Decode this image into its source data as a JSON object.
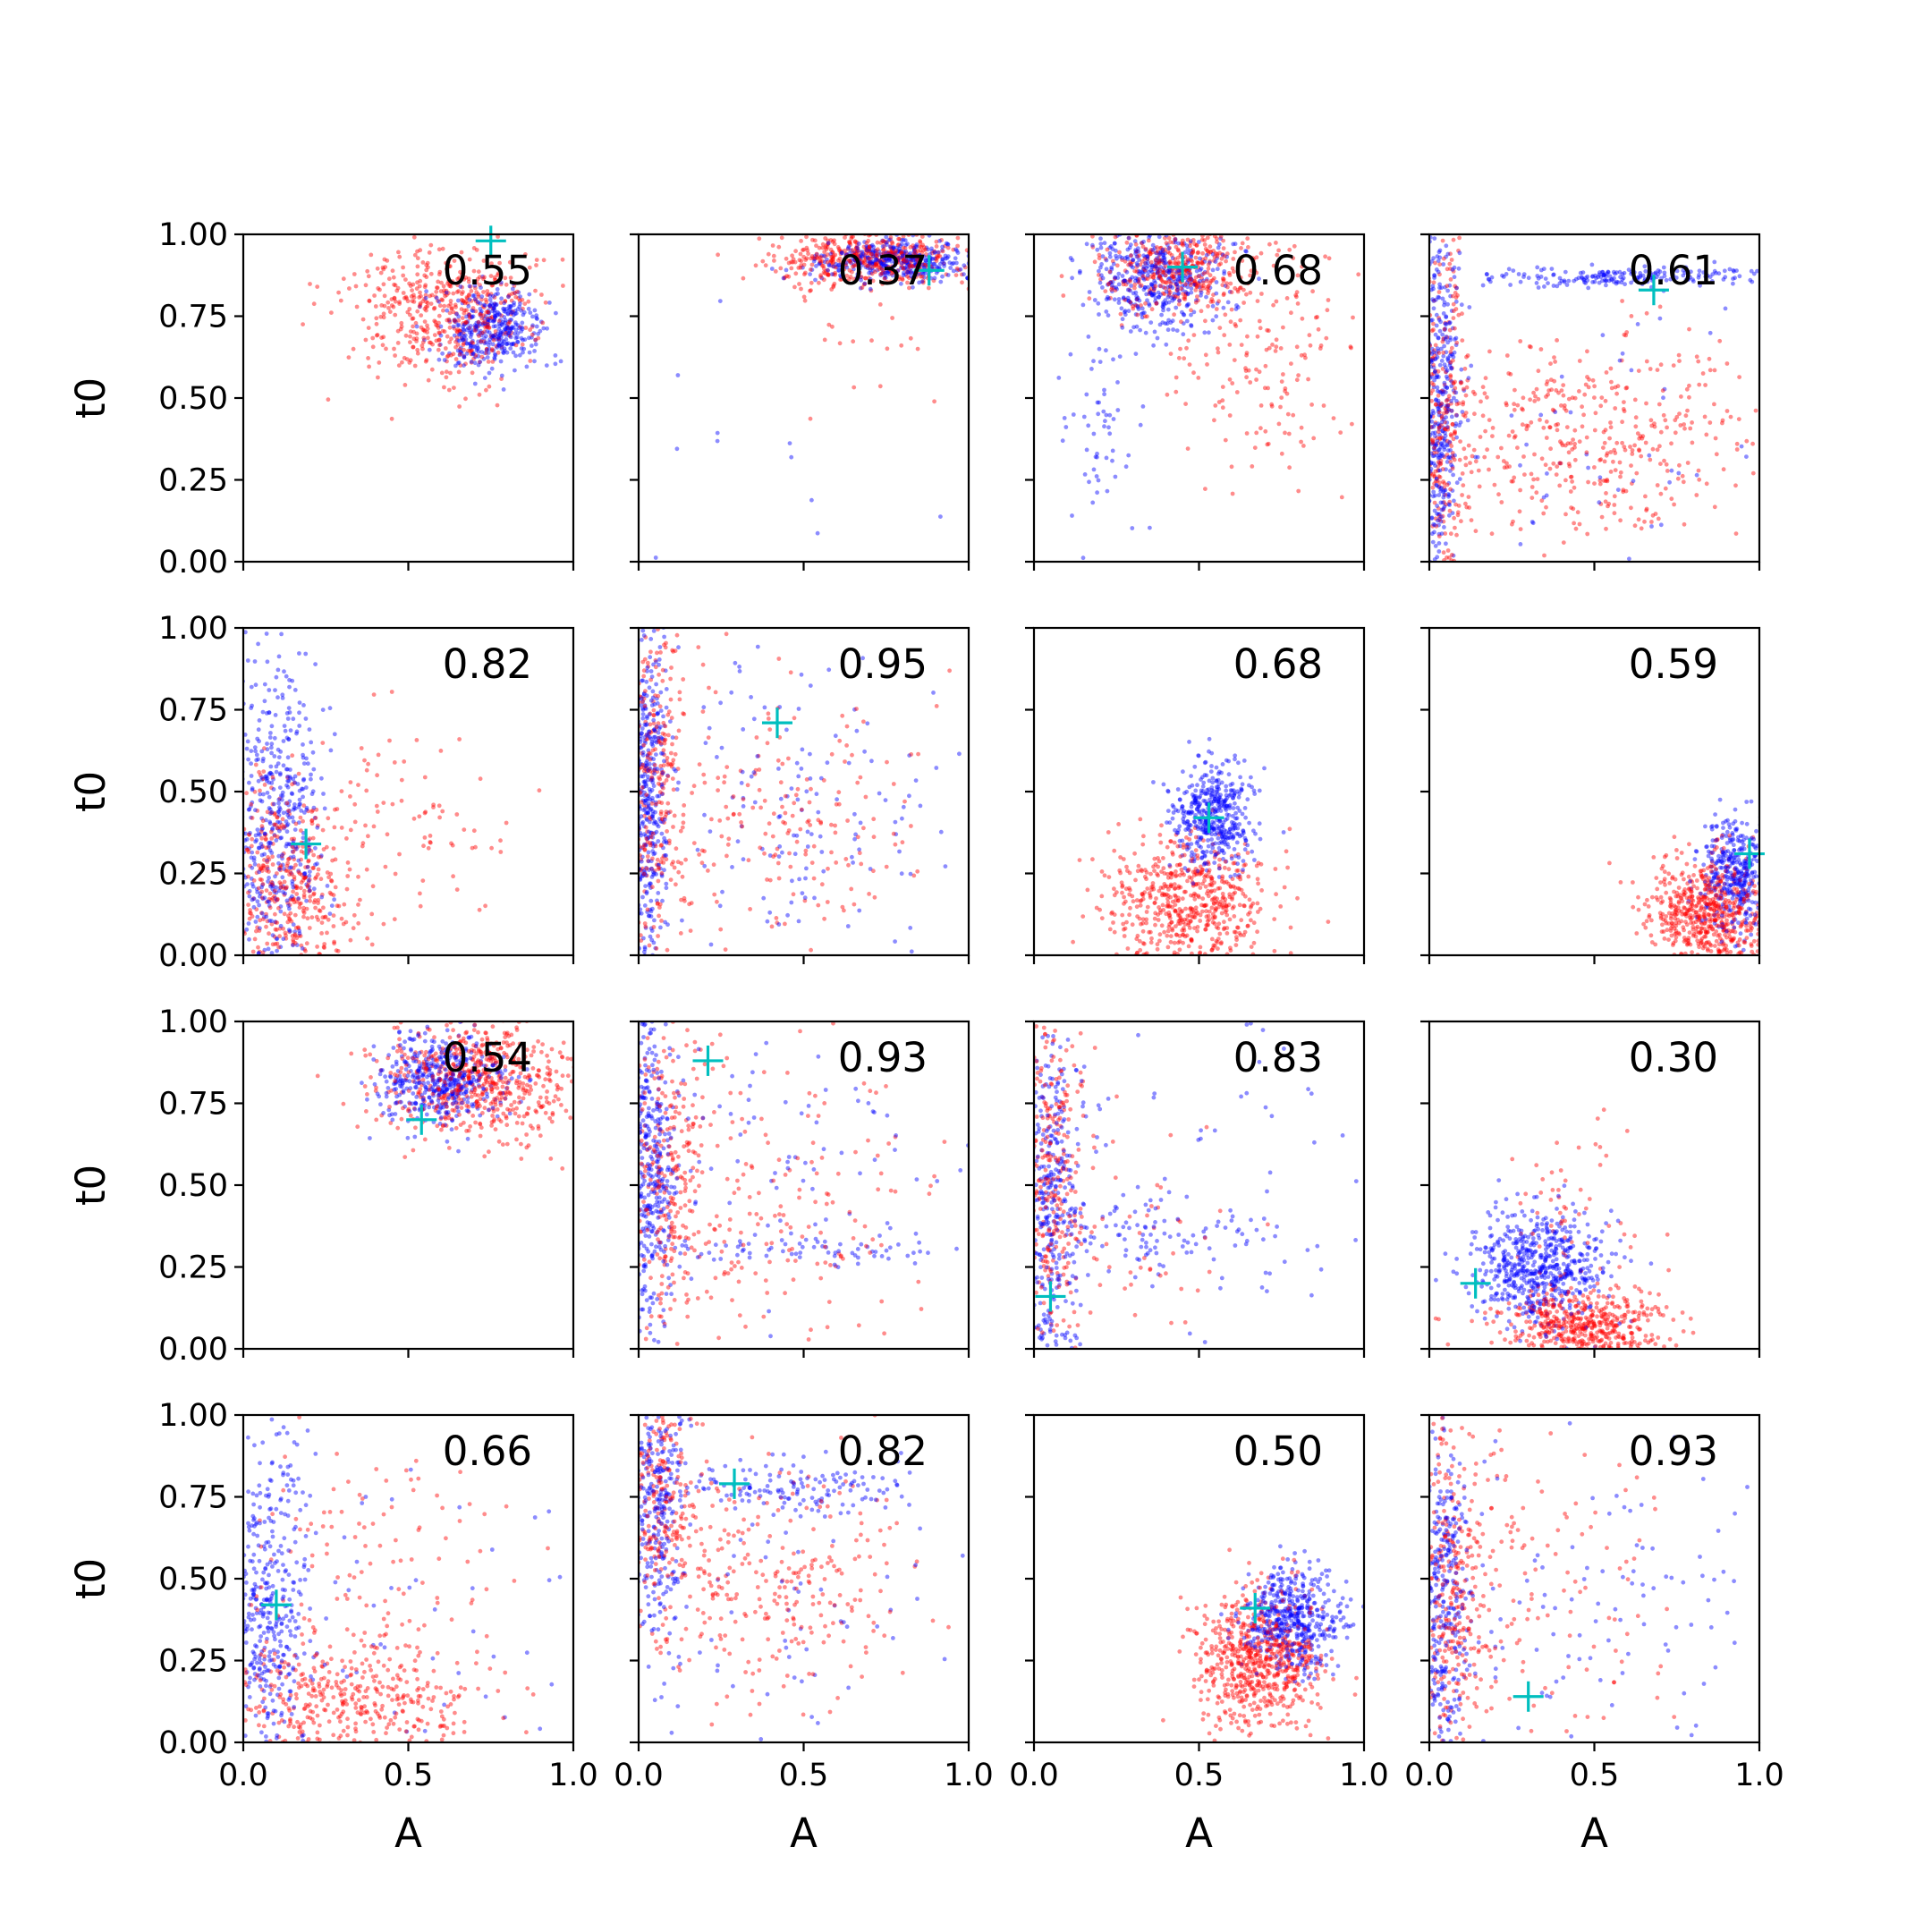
{
  "figure": {
    "rows": 4,
    "cols": 4,
    "xlabel": "A",
    "ylabel": "t0",
    "xlim": [
      0,
      1
    ],
    "ylim": [
      0,
      1
    ],
    "xticks": [
      0.0,
      0.5,
      1.0
    ],
    "xtick_labels": [
      "0.0",
      "0.5",
      "1.0"
    ],
    "yticks": [
      0.0,
      0.25,
      0.5,
      0.75,
      1.0
    ],
    "ytick_labels": [
      "0.00",
      "0.25",
      "0.50",
      "0.75",
      "1.00"
    ],
    "colors": {
      "series_a": "#0000ff",
      "series_b": "#ff0000",
      "marker": "#00bfbf",
      "axis": "#000000"
    }
  },
  "chart_data": [
    {
      "type": "scatter",
      "label": "0.55",
      "marker": [
        0.75,
        0.98
      ],
      "series": [
        {
          "name": "blue",
          "color": "#0000ff",
          "clusters": [
            {
              "cx": 0.74,
              "cy": 0.71,
              "sx": 0.08,
              "sy": 0.06,
              "n": 380
            }
          ]
        },
        {
          "name": "red",
          "color": "#ff0000",
          "clusters": [
            {
              "cx": 0.63,
              "cy": 0.76,
              "sx": 0.14,
              "sy": 0.1,
              "n": 520
            }
          ]
        }
      ]
    },
    {
      "type": "scatter",
      "label": "0.37",
      "marker": [
        0.88,
        0.89
      ],
      "series": [
        {
          "name": "blue",
          "color": "#0000ff",
          "clusters": [
            {
              "cx": 0.78,
              "cy": 0.92,
              "sx": 0.12,
              "sy": 0.03,
              "n": 380
            },
            {
              "cx": 0.3,
              "cy": 0.3,
              "sx": 0.2,
              "sy": 0.25,
              "n": 12
            }
          ]
        },
        {
          "name": "red",
          "color": "#ff0000",
          "clusters": [
            {
              "cx": 0.7,
              "cy": 0.93,
              "sx": 0.15,
              "sy": 0.04,
              "n": 480
            },
            {
              "cx": 0.7,
              "cy": 0.65,
              "sx": 0.15,
              "sy": 0.15,
              "n": 20
            }
          ]
        }
      ]
    },
    {
      "type": "scatter",
      "label": "0.68",
      "marker": [
        0.45,
        0.9
      ],
      "series": [
        {
          "name": "blue",
          "color": "#0000ff",
          "clusters": [
            {
              "cx": 0.38,
              "cy": 0.87,
              "sx": 0.1,
              "sy": 0.08,
              "n": 450
            },
            {
              "cx": 0.2,
              "cy": 0.4,
              "sx": 0.07,
              "sy": 0.18,
              "n": 60
            }
          ]
        },
        {
          "name": "red",
          "color": "#ff0000",
          "clusters": [
            {
              "cx": 0.45,
              "cy": 0.9,
              "sx": 0.12,
              "sy": 0.07,
              "n": 420
            },
            {
              "cx": 0.72,
              "cy": 0.62,
              "sx": 0.15,
              "sy": 0.18,
              "n": 160
            }
          ]
        }
      ]
    },
    {
      "type": "scatter",
      "label": "0.61",
      "marker": [
        0.68,
        0.83
      ],
      "series": [
        {
          "name": "blue",
          "color": "#0000ff",
          "clusters": [
            {
              "cx": 0.03,
              "cy": 0.5,
              "sx": 0.03,
              "sy": 0.28,
              "n": 420
            },
            {
              "cx": 0.6,
              "cy": 0.87,
              "sx": 0.25,
              "sy": 0.015,
              "n": 200
            },
            {
              "cx": 0.5,
              "cy": 0.4,
              "sx": 0.3,
              "sy": 0.25,
              "n": 60
            }
          ]
        },
        {
          "name": "red",
          "color": "#ff0000",
          "clusters": [
            {
              "cx": 0.04,
              "cy": 0.5,
              "sx": 0.04,
              "sy": 0.28,
              "n": 280
            },
            {
              "cx": 0.5,
              "cy": 0.37,
              "sx": 0.25,
              "sy": 0.15,
              "n": 420
            }
          ]
        }
      ]
    },
    {
      "type": "scatter",
      "label": "0.82",
      "marker": [
        0.19,
        0.34
      ],
      "series": [
        {
          "name": "blue",
          "color": "#0000ff",
          "clusters": [
            {
              "cx": 0.1,
              "cy": 0.4,
              "sx": 0.07,
              "sy": 0.25,
              "n": 480
            }
          ]
        },
        {
          "name": "red",
          "color": "#ff0000",
          "clusters": [
            {
              "cx": 0.12,
              "cy": 0.2,
              "sx": 0.1,
              "sy": 0.15,
              "n": 450
            },
            {
              "cx": 0.45,
              "cy": 0.4,
              "sx": 0.18,
              "sy": 0.15,
              "n": 90
            }
          ]
        }
      ]
    },
    {
      "type": "scatter",
      "label": "0.95",
      "marker": [
        0.42,
        0.71
      ],
      "series": [
        {
          "name": "blue",
          "color": "#0000ff",
          "clusters": [
            {
              "cx": 0.03,
              "cy": 0.5,
              "sx": 0.03,
              "sy": 0.28,
              "n": 420
            },
            {
              "cx": 0.45,
              "cy": 0.45,
              "sx": 0.25,
              "sy": 0.25,
              "n": 160
            }
          ]
        },
        {
          "name": "red",
          "color": "#ff0000",
          "clusters": [
            {
              "cx": 0.05,
              "cy": 0.5,
              "sx": 0.05,
              "sy": 0.28,
              "n": 300
            },
            {
              "cx": 0.4,
              "cy": 0.4,
              "sx": 0.22,
              "sy": 0.22,
              "n": 200
            }
          ]
        }
      ]
    },
    {
      "type": "scatter",
      "label": "0.68",
      "marker": [
        0.53,
        0.42
      ],
      "series": [
        {
          "name": "blue",
          "color": "#0000ff",
          "clusters": [
            {
              "cx": 0.54,
              "cy": 0.42,
              "sx": 0.06,
              "sy": 0.08,
              "n": 450
            }
          ]
        },
        {
          "name": "red",
          "color": "#ff0000",
          "clusters": [
            {
              "cx": 0.47,
              "cy": 0.16,
              "sx": 0.12,
              "sy": 0.1,
              "n": 600
            }
          ]
        }
      ]
    },
    {
      "type": "scatter",
      "label": "0.59",
      "marker": [
        0.97,
        0.31
      ],
      "series": [
        {
          "name": "blue",
          "color": "#0000ff",
          "clusters": [
            {
              "cx": 0.93,
              "cy": 0.25,
              "sx": 0.05,
              "sy": 0.09,
              "n": 380
            }
          ]
        },
        {
          "name": "red",
          "color": "#ff0000",
          "clusters": [
            {
              "cx": 0.85,
              "cy": 0.13,
              "sx": 0.1,
              "sy": 0.09,
              "n": 650
            }
          ]
        }
      ]
    },
    {
      "type": "scatter",
      "label": "0.54",
      "marker": [
        0.54,
        0.7
      ],
      "series": [
        {
          "name": "blue",
          "color": "#0000ff",
          "clusters": [
            {
              "cx": 0.6,
              "cy": 0.82,
              "sx": 0.09,
              "sy": 0.07,
              "n": 450
            }
          ]
        },
        {
          "name": "red",
          "color": "#ff0000",
          "clusters": [
            {
              "cx": 0.72,
              "cy": 0.82,
              "sx": 0.15,
              "sy": 0.09,
              "n": 620
            }
          ]
        }
      ]
    },
    {
      "type": "scatter",
      "label": "0.93",
      "marker": [
        0.21,
        0.88
      ],
      "series": [
        {
          "name": "blue",
          "color": "#0000ff",
          "clusters": [
            {
              "cx": 0.04,
              "cy": 0.5,
              "sx": 0.04,
              "sy": 0.28,
              "n": 380
            },
            {
              "cx": 0.5,
              "cy": 0.3,
              "sx": 0.25,
              "sy": 0.02,
              "n": 70
            },
            {
              "cx": 0.4,
              "cy": 0.6,
              "sx": 0.25,
              "sy": 0.25,
              "n": 90
            }
          ]
        },
        {
          "name": "red",
          "color": "#ff0000",
          "clusters": [
            {
              "cx": 0.08,
              "cy": 0.5,
              "sx": 0.07,
              "sy": 0.28,
              "n": 280
            },
            {
              "cx": 0.4,
              "cy": 0.4,
              "sx": 0.22,
              "sy": 0.25,
              "n": 190
            }
          ]
        }
      ]
    },
    {
      "type": "scatter",
      "label": "0.83",
      "marker": [
        0.05,
        0.16
      ],
      "series": [
        {
          "name": "blue",
          "color": "#0000ff",
          "clusters": [
            {
              "cx": 0.05,
              "cy": 0.45,
              "sx": 0.05,
              "sy": 0.28,
              "n": 380
            },
            {
              "cx": 0.35,
              "cy": 0.35,
              "sx": 0.2,
              "sy": 0.06,
              "n": 110
            },
            {
              "cx": 0.5,
              "cy": 0.5,
              "sx": 0.3,
              "sy": 0.3,
              "n": 60
            }
          ]
        },
        {
          "name": "red",
          "color": "#ff0000",
          "clusters": [
            {
              "cx": 0.05,
              "cy": 0.55,
              "sx": 0.05,
              "sy": 0.28,
              "n": 300
            },
            {
              "cx": 0.3,
              "cy": 0.3,
              "sx": 0.15,
              "sy": 0.2,
              "n": 60
            }
          ]
        }
      ]
    },
    {
      "type": "scatter",
      "label": "0.30",
      "marker": [
        0.14,
        0.2
      ],
      "series": [
        {
          "name": "blue",
          "color": "#0000ff",
          "clusters": [
            {
              "cx": 0.33,
              "cy": 0.25,
              "sx": 0.1,
              "sy": 0.09,
              "n": 600
            }
          ]
        },
        {
          "name": "red",
          "color": "#ff0000",
          "clusters": [
            {
              "cx": 0.47,
              "cy": 0.07,
              "sx": 0.13,
              "sy": 0.05,
              "n": 500
            },
            {
              "cx": 0.43,
              "cy": 0.4,
              "sx": 0.1,
              "sy": 0.15,
              "n": 60
            }
          ]
        }
      ]
    },
    {
      "type": "scatter",
      "label": "0.66",
      "marker": [
        0.1,
        0.42
      ],
      "series": [
        {
          "name": "blue",
          "color": "#0000ff",
          "clusters": [
            {
              "cx": 0.08,
              "cy": 0.45,
              "sx": 0.06,
              "sy": 0.28,
              "n": 400
            },
            {
              "cx": 0.5,
              "cy": 0.3,
              "sx": 0.3,
              "sy": 0.25,
              "n": 60
            }
          ]
        },
        {
          "name": "red",
          "color": "#ff0000",
          "clusters": [
            {
              "cx": 0.3,
              "cy": 0.12,
              "sx": 0.2,
              "sy": 0.09,
              "n": 420
            },
            {
              "cx": 0.35,
              "cy": 0.5,
              "sx": 0.25,
              "sy": 0.25,
              "n": 150
            }
          ]
        }
      ]
    },
    {
      "type": "scatter",
      "label": "0.82",
      "marker": [
        0.29,
        0.79
      ],
      "series": [
        {
          "name": "blue",
          "color": "#0000ff",
          "clusters": [
            {
              "cx": 0.05,
              "cy": 0.75,
              "sx": 0.05,
              "sy": 0.2,
              "n": 300
            },
            {
              "cx": 0.45,
              "cy": 0.78,
              "sx": 0.2,
              "sy": 0.04,
              "n": 140
            },
            {
              "cx": 0.4,
              "cy": 0.35,
              "sx": 0.3,
              "sy": 0.25,
              "n": 80
            }
          ]
        },
        {
          "name": "red",
          "color": "#ff0000",
          "clusters": [
            {
              "cx": 0.06,
              "cy": 0.75,
              "sx": 0.06,
              "sy": 0.2,
              "n": 250
            },
            {
              "cx": 0.4,
              "cy": 0.5,
              "sx": 0.22,
              "sy": 0.18,
              "n": 280
            }
          ]
        }
      ]
    },
    {
      "type": "scatter",
      "label": "0.50",
      "marker": [
        0.67,
        0.41
      ],
      "series": [
        {
          "name": "blue",
          "color": "#0000ff",
          "clusters": [
            {
              "cx": 0.78,
              "cy": 0.38,
              "sx": 0.07,
              "sy": 0.08,
              "n": 480
            }
          ]
        },
        {
          "name": "red",
          "color": "#ff0000",
          "clusters": [
            {
              "cx": 0.68,
              "cy": 0.25,
              "sx": 0.1,
              "sy": 0.1,
              "n": 650
            }
          ]
        }
      ]
    },
    {
      "type": "scatter",
      "label": "0.93",
      "marker": [
        0.3,
        0.14
      ],
      "series": [
        {
          "name": "blue",
          "color": "#0000ff",
          "clusters": [
            {
              "cx": 0.04,
              "cy": 0.45,
              "sx": 0.04,
              "sy": 0.28,
              "n": 380
            },
            {
              "cx": 0.5,
              "cy": 0.4,
              "sx": 0.3,
              "sy": 0.28,
              "n": 110
            }
          ]
        },
        {
          "name": "red",
          "color": "#ff0000",
          "clusters": [
            {
              "cx": 0.07,
              "cy": 0.45,
              "sx": 0.06,
              "sy": 0.28,
              "n": 320
            },
            {
              "cx": 0.35,
              "cy": 0.45,
              "sx": 0.2,
              "sy": 0.28,
              "n": 120
            }
          ]
        }
      ]
    }
  ]
}
